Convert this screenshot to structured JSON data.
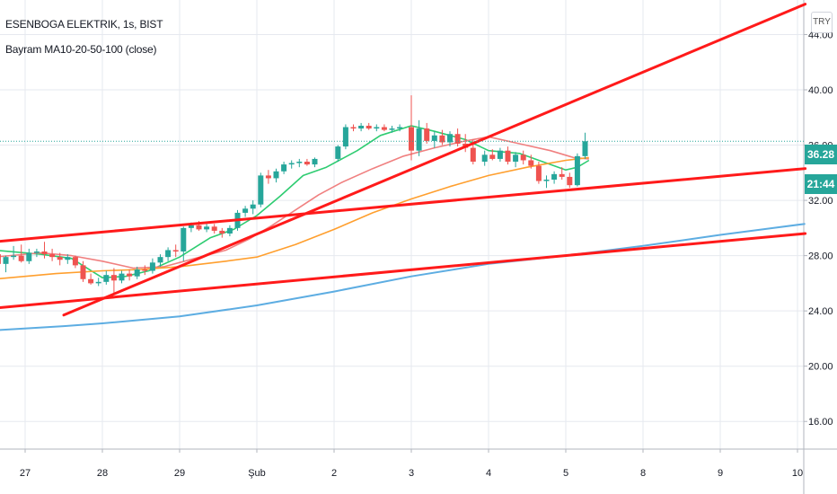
{
  "header": {
    "title": "ESENBOGA ELEKTRIK, 1s, BIST",
    "indicator": "Bayram MA10-20-50-100 (close)"
  },
  "price_scale": {
    "currency_button": "TRY",
    "last_price_label": "36.28",
    "countdown_label": "21:44"
  },
  "colors": {
    "up": "#26a69a",
    "down": "#ef5350",
    "trendline": "#ff1a1a",
    "ma10": "#2ecc71",
    "ma20": "#f08080",
    "ma50": "#ff9f2e",
    "ma100": "#5dade2",
    "price_line": "#26a69a",
    "grid": "#e6e9ef"
  },
  "chart_data": {
    "type": "candlestick",
    "x_ticks": [
      "27",
      "28",
      "29",
      "Şub",
      "2",
      "3",
      "4",
      "5",
      "8",
      "9",
      "10"
    ],
    "y_ticks": [
      "16.00",
      "20.00",
      "24.00",
      "28.00",
      "32.00",
      "36.00",
      "40.00",
      "44.00"
    ],
    "ylim": [
      14,
      46.5
    ],
    "last_price": 36.28,
    "grid": true,
    "candles": [
      [
        -0.35,
        28.1,
        28.6,
        27.2,
        27.4
      ],
      [
        -0.25,
        27.4,
        28.0,
        26.8,
        27.9
      ],
      [
        -0.15,
        27.9,
        28.7,
        27.7,
        28.0
      ],
      [
        -0.05,
        28.0,
        28.8,
        27.5,
        27.6
      ],
      [
        0.05,
        27.6,
        28.5,
        27.4,
        28.2
      ],
      [
        0.15,
        28.2,
        28.5,
        27.9,
        28.3
      ],
      [
        0.25,
        28.3,
        29.0,
        27.8,
        28.1
      ],
      [
        0.35,
        28.1,
        28.5,
        27.6,
        27.9
      ],
      [
        0.45,
        27.9,
        28.2,
        27.3,
        27.7
      ],
      [
        0.55,
        27.7,
        28.1,
        27.4,
        27.9
      ],
      [
        0.65,
        27.9,
        28.0,
        27.1,
        27.3
      ],
      [
        0.75,
        27.3,
        27.6,
        26.1,
        26.3
      ],
      [
        0.85,
        26.3,
        26.7,
        25.9,
        26.0
      ],
      [
        0.95,
        26.0,
        26.4,
        25.8,
        26.1
      ],
      [
        1.05,
        26.1,
        26.9,
        25.9,
        26.6
      ],
      [
        1.15,
        26.6,
        27.1,
        25.3,
        26.2
      ],
      [
        1.25,
        26.2,
        26.9,
        26.0,
        26.7
      ],
      [
        1.35,
        26.7,
        27.0,
        26.2,
        26.5
      ],
      [
        1.45,
        26.5,
        27.2,
        26.3,
        27.0
      ],
      [
        1.55,
        27.0,
        27.3,
        26.6,
        26.9
      ],
      [
        1.65,
        26.9,
        27.8,
        26.7,
        27.5
      ],
      [
        1.75,
        27.5,
        28.1,
        27.2,
        27.9
      ],
      [
        1.85,
        27.9,
        28.6,
        27.6,
        28.4
      ],
      [
        1.95,
        28.4,
        28.8,
        27.9,
        28.3
      ],
      [
        2.05,
        28.3,
        30.1,
        27.6,
        30.0
      ],
      [
        2.15,
        30.0,
        30.4,
        29.7,
        30.2
      ],
      [
        2.25,
        30.2,
        30.5,
        29.8,
        29.9
      ],
      [
        2.35,
        29.9,
        30.3,
        29.7,
        30.1
      ],
      [
        2.45,
        30.1,
        30.3,
        29.6,
        29.8
      ],
      [
        2.55,
        29.8,
        30.0,
        29.3,
        29.6
      ],
      [
        2.65,
        29.6,
        30.2,
        29.4,
        30.0
      ],
      [
        2.75,
        30.0,
        31.3,
        29.8,
        31.1
      ],
      [
        2.85,
        31.1,
        31.6,
        30.8,
        31.4
      ],
      [
        2.95,
        31.4,
        32.0,
        31.0,
        31.7
      ],
      [
        3.05,
        31.7,
        34.0,
        31.5,
        33.8
      ],
      [
        3.15,
        33.8,
        34.2,
        33.2,
        33.6
      ],
      [
        3.25,
        33.6,
        34.3,
        33.3,
        34.1
      ],
      [
        3.35,
        34.1,
        34.8,
        33.9,
        34.6
      ],
      [
        3.45,
        34.6,
        34.9,
        34.3,
        34.7
      ],
      [
        3.55,
        34.7,
        35.0,
        34.4,
        34.8
      ],
      [
        3.65,
        34.8,
        35.0,
        34.5,
        34.6
      ],
      [
        3.75,
        34.6,
        35.1,
        34.4,
        35.0
      ],
      [
        4.05,
        35.0,
        36.0,
        34.8,
        35.9
      ],
      [
        4.15,
        35.9,
        37.5,
        35.7,
        37.3
      ],
      [
        4.25,
        37.3,
        37.5,
        37.0,
        37.2
      ],
      [
        4.35,
        37.2,
        37.6,
        37.0,
        37.4
      ],
      [
        4.45,
        37.4,
        37.6,
        37.1,
        37.2
      ],
      [
        4.55,
        37.2,
        37.5,
        37.0,
        37.3
      ],
      [
        4.65,
        37.3,
        37.5,
        37.0,
        37.1
      ],
      [
        4.75,
        37.1,
        37.4,
        36.9,
        37.2
      ],
      [
        4.85,
        37.2,
        37.5,
        37.0,
        37.3
      ],
      [
        5.0,
        37.3,
        39.6,
        34.9,
        35.6
      ],
      [
        5.1,
        35.6,
        37.8,
        35.2,
        37.2
      ],
      [
        5.2,
        37.2,
        37.6,
        36.1,
        36.3
      ],
      [
        5.3,
        36.3,
        37.0,
        35.8,
        36.7
      ],
      [
        5.4,
        36.7,
        37.1,
        36.0,
        36.2
      ],
      [
        5.5,
        36.2,
        37.0,
        35.9,
        36.8
      ],
      [
        5.6,
        36.8,
        37.2,
        35.9,
        36.1
      ],
      [
        5.7,
        36.1,
        36.8,
        35.5,
        35.8
      ],
      [
        5.8,
        35.8,
        36.4,
        34.6,
        34.8
      ],
      [
        5.95,
        34.8,
        35.6,
        34.5,
        35.3
      ],
      [
        6.05,
        35.3,
        35.7,
        34.9,
        35.0
      ],
      [
        6.15,
        35.0,
        35.8,
        34.8,
        35.6
      ],
      [
        6.25,
        35.6,
        35.9,
        34.6,
        34.8
      ],
      [
        6.35,
        34.8,
        35.5,
        34.4,
        35.3
      ],
      [
        6.45,
        35.3,
        35.6,
        34.6,
        34.9
      ],
      [
        6.55,
        34.9,
        35.3,
        34.3,
        34.5
      ],
      [
        6.65,
        34.5,
        34.8,
        33.2,
        33.4
      ],
      [
        6.75,
        33.4,
        33.8,
        32.9,
        33.5
      ],
      [
        6.85,
        33.5,
        34.1,
        33.2,
        33.9
      ],
      [
        6.95,
        33.9,
        34.4,
        33.5,
        33.7
      ],
      [
        7.05,
        33.7,
        34.0,
        32.9,
        33.1
      ],
      [
        7.15,
        33.1,
        35.4,
        33.0,
        35.2
      ],
      [
        7.25,
        35.2,
        36.9,
        35.0,
        36.28
      ]
    ],
    "series": [
      {
        "values": [
          [
            -0.4,
            28.4
          ],
          [
            0.2,
            28.1
          ],
          [
            0.6,
            27.8
          ],
          [
            1.0,
            26.4
          ],
          [
            1.3,
            26.5
          ],
          [
            1.6,
            26.9
          ],
          [
            2.0,
            27.9
          ],
          [
            2.4,
            29.3
          ],
          [
            2.7,
            29.9
          ],
          [
            3.0,
            30.9
          ],
          [
            3.3,
            32.3
          ],
          [
            3.6,
            33.8
          ],
          [
            3.9,
            34.4
          ],
          [
            4.3,
            35.6
          ],
          [
            4.6,
            36.7
          ],
          [
            5.0,
            37.4
          ],
          [
            5.3,
            37.0
          ],
          [
            5.7,
            36.4
          ],
          [
            6.0,
            35.6
          ],
          [
            6.4,
            35.4
          ],
          [
            6.7,
            34.8
          ],
          [
            7.0,
            34.2
          ],
          [
            7.15,
            34.4
          ],
          [
            7.3,
            34.9
          ]
        ]
      },
      {
        "values": [
          [
            -0.4,
            27.9
          ],
          [
            0.2,
            28.2
          ],
          [
            0.6,
            28.0
          ],
          [
            1.0,
            27.6
          ],
          [
            1.4,
            27.1
          ],
          [
            1.8,
            27.2
          ],
          [
            2.2,
            27.8
          ],
          [
            2.6,
            28.4
          ],
          [
            2.9,
            29.2
          ],
          [
            3.2,
            30.2
          ],
          [
            3.5,
            31.3
          ],
          [
            3.8,
            32.4
          ],
          [
            4.1,
            33.3
          ],
          [
            4.5,
            34.3
          ],
          [
            4.9,
            35.2
          ],
          [
            5.3,
            35.8
          ],
          [
            5.7,
            36.3
          ],
          [
            6.0,
            36.6
          ],
          [
            6.4,
            36.1
          ],
          [
            6.8,
            35.6
          ],
          [
            7.1,
            35.1
          ],
          [
            7.3,
            35.0
          ]
        ]
      },
      {
        "values": [
          [
            -0.4,
            26.3
          ],
          [
            0.4,
            26.7
          ],
          [
            1.0,
            26.9
          ],
          [
            1.5,
            27.0
          ],
          [
            2.0,
            27.2
          ],
          [
            2.6,
            27.6
          ],
          [
            3.0,
            27.9
          ],
          [
            3.5,
            28.8
          ],
          [
            4.0,
            29.9
          ],
          [
            4.5,
            31.1
          ],
          [
            5.0,
            32.1
          ],
          [
            5.5,
            33.0
          ],
          [
            6.0,
            33.8
          ],
          [
            6.5,
            34.4
          ],
          [
            7.0,
            34.9
          ],
          [
            7.3,
            35.1
          ]
        ]
      },
      {
        "values": [
          [
            -0.4,
            22.6
          ],
          [
            0.5,
            22.9
          ],
          [
            1.0,
            23.1
          ],
          [
            2.0,
            23.6
          ],
          [
            3.0,
            24.4
          ],
          [
            4.0,
            25.4
          ],
          [
            5.0,
            26.5
          ],
          [
            6.0,
            27.4
          ],
          [
            7.0,
            28.0
          ],
          [
            8.0,
            28.7
          ],
          [
            9.0,
            29.5
          ],
          [
            10.1,
            30.3
          ]
        ]
      }
    ],
    "trendlines": [
      [
        -0.4,
        29.0,
        10.1,
        34.3
      ],
      [
        -0.4,
        24.2,
        10.1,
        29.6
      ],
      [
        0.5,
        23.7,
        10.1,
        46.2
      ]
    ]
  }
}
